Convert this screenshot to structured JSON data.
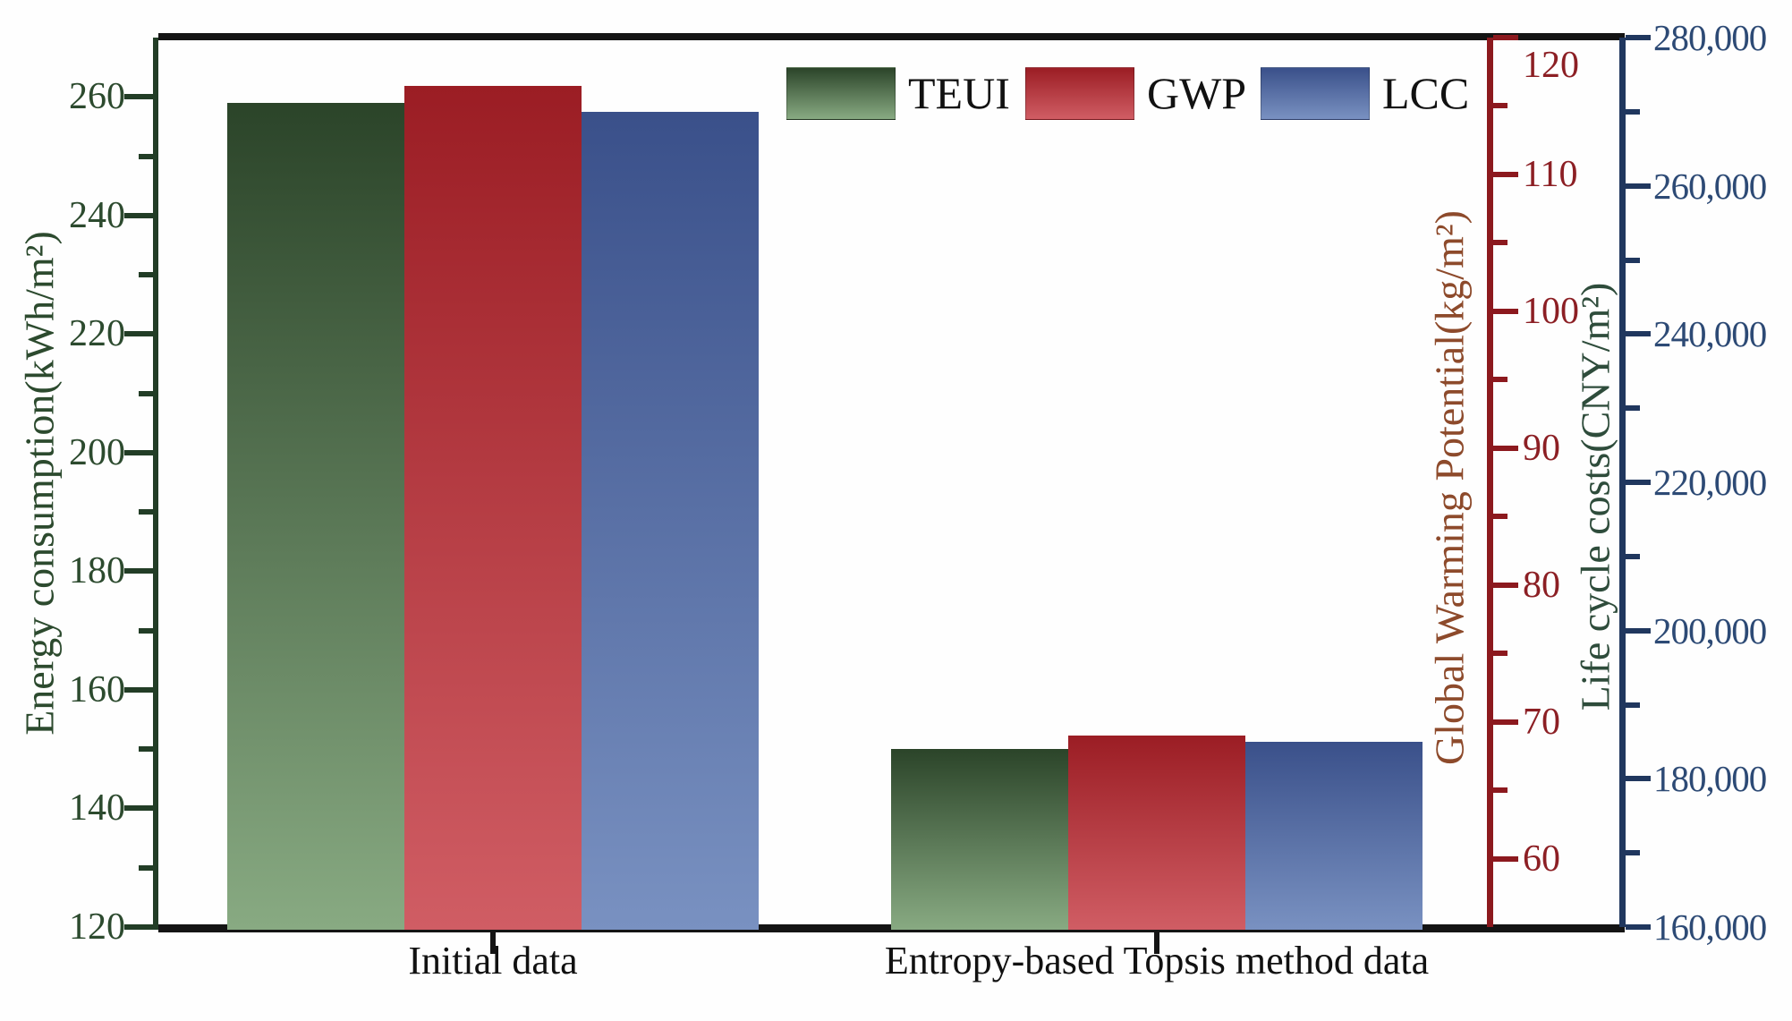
{
  "chart_data": {
    "type": "bar",
    "title": "",
    "categories": [
      "Initial data",
      "Entropy-based Topsis method data"
    ],
    "series": [
      {
        "name": "TEUI",
        "axis": "teui",
        "values": [
          259,
          150
        ],
        "bar_color_top": "#2b4429",
        "bar_color_bottom": "#88aa82"
      },
      {
        "name": "GWP",
        "axis": "gwp",
        "values": [
          116.5,
          69
        ],
        "bar_color_top": "#9b1d24",
        "bar_color_bottom": "#d05d64"
      },
      {
        "name": "LCC",
        "axis": "lcc",
        "values": [
          270000,
          185000
        ],
        "bar_color_top": "#3a508a",
        "bar_color_bottom": "#7991c1"
      }
    ],
    "axes": {
      "teui": {
        "title": "Energy consumption(kWh/m²)",
        "min": 120,
        "max": 270,
        "major_step": 20,
        "label_min": 120,
        "label_max": 260,
        "side": "left",
        "line_color": "#223d26",
        "tick_label_color": "#2c4a2e",
        "title_color": "#2c4a2e",
        "comma_format": false
      },
      "gwp": {
        "title": "Global Warming Potential(kg/m²)",
        "min": 55,
        "max": 120,
        "major_step": 10,
        "label_min": 60,
        "label_max": 120,
        "side": "right",
        "line_color": "#8c191e",
        "tick_label_color": "#8c1f24",
        "title_color": "#8d4a2b",
        "comma_format": false,
        "clamp_top_label": true
      },
      "lcc": {
        "title": "Life cycle costs(CNY/m²)",
        "min": 160000,
        "max": 280000,
        "major_step": 20000,
        "label_min": 160000,
        "label_max": 280000,
        "side": "right",
        "line_color": "#20375e",
        "tick_label_color": "#2d4a75",
        "title_color": "#2e4c3b",
        "comma_format": true
      }
    },
    "legend_entries": [
      "TEUI",
      "GWP",
      "LCC"
    ],
    "legend_position": "top-center",
    "frame_color": "#141414",
    "background_color": "#fefefe",
    "grid": false
  }
}
